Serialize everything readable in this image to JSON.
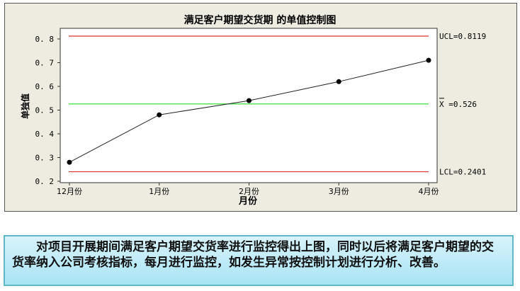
{
  "chart_data": {
    "type": "line",
    "title": "满足客户期望交货期 的单值控制图",
    "xlabel": "月份",
    "ylabel": "单独值",
    "categories": [
      "12月份",
      "1月份",
      "2月份",
      "3月份",
      "4月份"
    ],
    "values": [
      0.28,
      0.48,
      0.54,
      0.62,
      0.71
    ],
    "ylim": [
      0.2,
      0.8
    ],
    "yticks": [
      "0.2",
      "0.3",
      "0.4",
      "0.5",
      "0.6",
      "0.7",
      "0.8"
    ],
    "control_lines": [
      {
        "label": "UCL=0.8119",
        "value": 0.8119,
        "color": "#e03030"
      },
      {
        "label": "X =0.526",
        "value": 0.526,
        "color": "#22dd22"
      },
      {
        "label": "LCL=0.2401",
        "value": 0.2401,
        "color": "#e03030"
      }
    ],
    "grid": false
  },
  "note": "对项目开展期间满足客户期望交货率进行监控得出上图，同时以后将满足客户期望的交货率纳入公司考核指标，每月进行监控，如发生异常按控制计划进行分析、改善。"
}
